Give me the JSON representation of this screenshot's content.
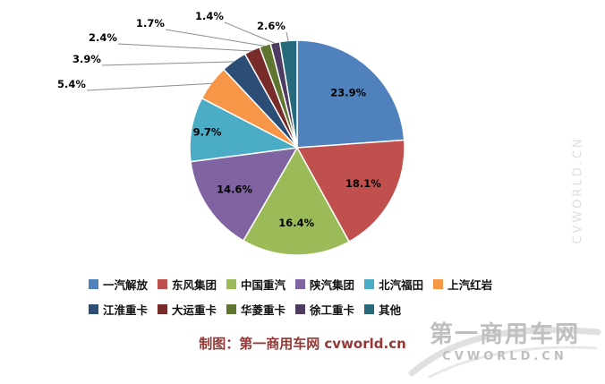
{
  "chart_data": {
    "type": "pie",
    "title": "",
    "legend_position": "bottom",
    "start_angle_deg": 0,
    "direction": "clockwise",
    "grid": false,
    "series": [
      {
        "name": "一汽解放",
        "value": 23.9,
        "label": "23.9%",
        "color": "#4F81BD"
      },
      {
        "name": "东风集团",
        "value": 18.1,
        "label": "18.1%",
        "color": "#C0504D"
      },
      {
        "name": "中国重汽",
        "value": 16.4,
        "label": "16.4%",
        "color": "#9BBB59"
      },
      {
        "name": "陕汽集团",
        "value": 14.6,
        "label": "14.6%",
        "color": "#8064A2"
      },
      {
        "name": "北汽福田",
        "value": 9.7,
        "label": "9.7%",
        "color": "#4BACC6"
      },
      {
        "name": "上汽红岩",
        "value": 5.4,
        "label": "5.4%",
        "color": "#F79646"
      },
      {
        "name": "江淮重卡",
        "value": 3.9,
        "label": "3.9%",
        "color": "#2C4D75"
      },
      {
        "name": "大运重卡",
        "value": 2.4,
        "label": "2.4%",
        "color": "#772C2A"
      },
      {
        "name": "华菱重卡",
        "value": 1.7,
        "label": "1.7%",
        "color": "#5F7530"
      },
      {
        "name": "徐工重卡",
        "value": 1.4,
        "label": "1.4%",
        "color": "#4D3B62"
      },
      {
        "name": "其他",
        "value": 2.6,
        "label": "2.6%",
        "color": "#276A7C"
      }
    ]
  },
  "footer": {
    "credit": "制图：第一商用车网 cvworld.cn"
  },
  "watermark": {
    "line1": "第一商用车网",
    "line2": "CVWORLD.CN",
    "side": "CVWORLD.CN"
  }
}
